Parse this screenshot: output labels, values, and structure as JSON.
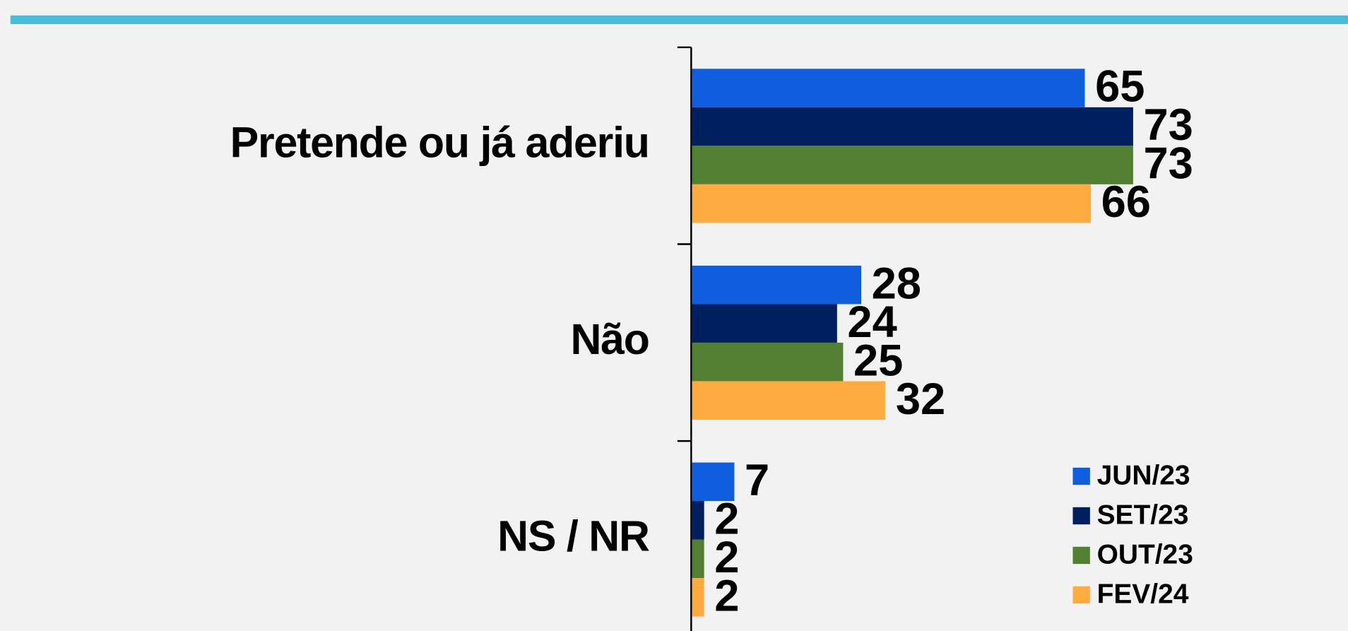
{
  "chart_data": {
    "type": "bar",
    "orientation": "horizontal",
    "categories": [
      "Pretende ou já aderiu",
      "Não",
      "NS / NR"
    ],
    "series": [
      {
        "name": "JUN/23",
        "color": "#0f5ee0",
        "values": [
          65,
          28,
          7
        ]
      },
      {
        "name": "SET/23",
        "color": "#001f5e",
        "values": [
          73,
          24,
          2
        ]
      },
      {
        "name": "OUT/23",
        "color": "#537f33",
        "values": [
          73,
          25,
          2
        ]
      },
      {
        "name": "FEV/24",
        "color": "#ffab40",
        "values": [
          66,
          32,
          2
        ]
      }
    ],
    "xlim": [
      0,
      100
    ],
    "legend": "lower right"
  }
}
